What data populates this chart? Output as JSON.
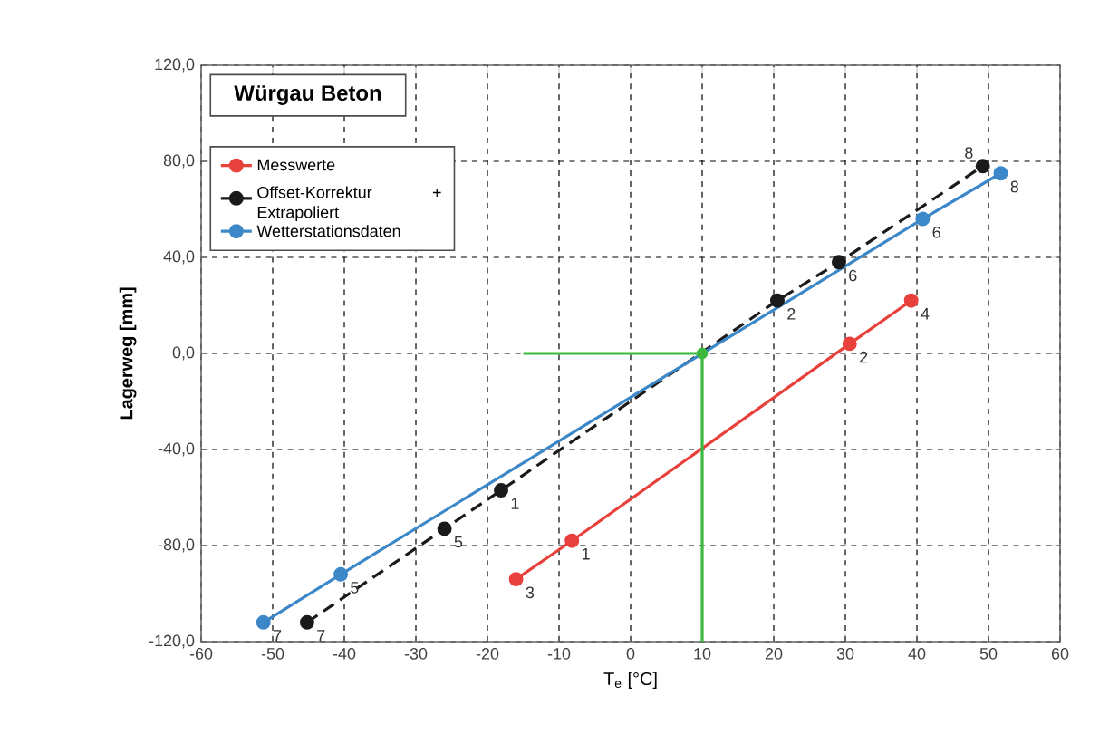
{
  "chart_data": {
    "type": "line",
    "title": "Würgau Beton",
    "xlabel": "T$_{e}$ [°C]",
    "ylabel": "Lagerweg [mm]",
    "xlim": [
      -60,
      60
    ],
    "xticks": [
      -60,
      -50,
      -40,
      -30,
      -20,
      -10,
      0,
      10,
      20,
      30,
      40,
      50,
      60
    ],
    "ylim": [
      -120,
      120
    ],
    "yticks": [
      {
        "value": -120,
        "label": "-120,0"
      },
      {
        "value": -80,
        "label": "-80,0"
      },
      {
        "value": -40,
        "label": "-40,0"
      },
      {
        "value": 0,
        "label": "0,0"
      },
      {
        "value": 40,
        "label": "40,0"
      },
      {
        "value": 80,
        "label": "80,0"
      },
      {
        "value": 120,
        "label": "120,0"
      }
    ],
    "grid": true,
    "legend": "top left",
    "marker": "circle",
    "series": [
      {
        "name": "Messwerte",
        "color": "#e8413c",
        "x": [
          -16,
          -8.2,
          30.6,
          39.2
        ],
        "values": [
          -94,
          -78,
          4,
          22
        ]
      },
      {
        "name": "Offset-Korrektur + Extrapoliert",
        "color": "#1a1a1a",
        "line_style": "dashed",
        "x": [
          -45.2,
          -26,
          -18.1,
          20.5,
          29.1,
          49.2
        ],
        "values": [
          -112,
          -73,
          -57,
          22,
          38,
          78
        ]
      },
      {
        "name": "Wetterstationsdaten",
        "color": "#3b87c8",
        "x": [
          -51.3,
          -40.5,
          40.8,
          51.7
        ],
        "values": [
          -112,
          -92,
          56,
          75
        ]
      },
      {
        "color": "#3cb93c",
        "marker": "none",
        "x": [
          -15,
          10,
          10
        ],
        "values": [
          0,
          0,
          -120
        ]
      },
      {
        "type": "scatter",
        "color": "#3cb93c",
        "x": [
          10
        ],
        "values": [
          0
        ]
      }
    ],
    "annotations": [
      {
        "text": "3",
        "x": -16,
        "y": -94
      },
      {
        "text": "1",
        "x": -8.2,
        "y": -78
      },
      {
        "text": "2",
        "x": 30.6,
        "y": 4
      },
      {
        "text": "4",
        "x": 39.2,
        "y": 22
      },
      {
        "text": "7",
        "x": -45.2,
        "y": -112
      },
      {
        "text": "5",
        "x": -26,
        "y": -73
      },
      {
        "text": "1",
        "x": -18.1,
        "y": -57
      },
      {
        "text": "2",
        "x": 20.5,
        "y": 22
      },
      {
        "text": "6",
        "x": 29.1,
        "y": 38
      },
      {
        "text": "8",
        "x": 49.2,
        "y": 78
      },
      {
        "text": "7",
        "x": -51.3,
        "y": -112
      },
      {
        "text": "5",
        "x": -40.5,
        "y": -92
      },
      {
        "text": "6",
        "x": 40.8,
        "y": 56
      },
      {
        "text": "8",
        "x": 51.7,
        "y": 75
      }
    ]
  }
}
